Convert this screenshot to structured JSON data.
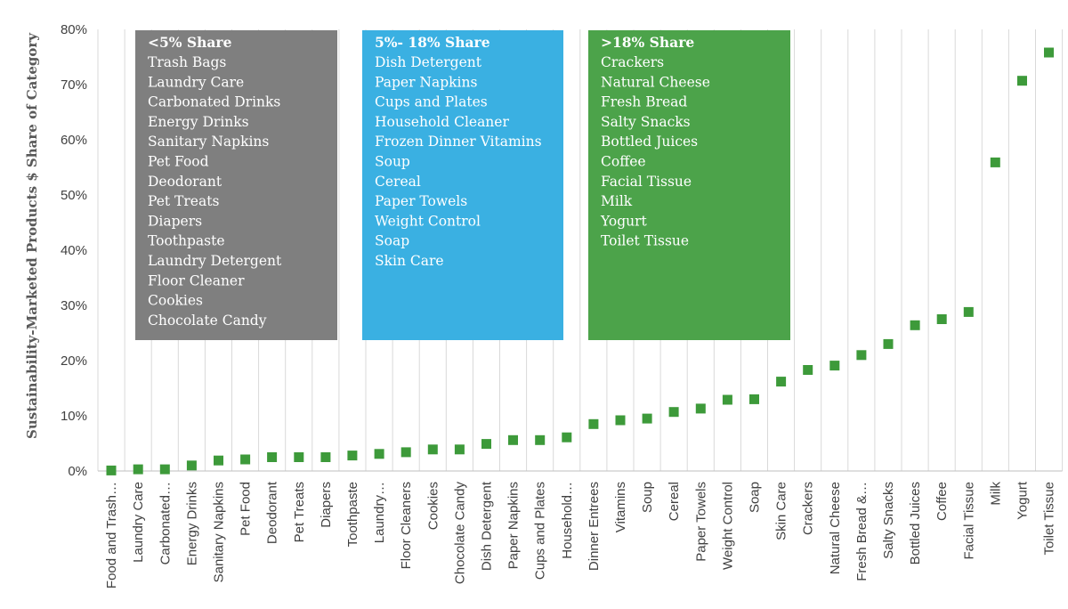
{
  "chart_data": {
    "type": "scatter",
    "ylabel": "Sustainability-Marketed  Products $ Share of Category",
    "xlabel": "",
    "ylim": [
      0,
      80
    ],
    "yticks": [
      0,
      10,
      20,
      30,
      40,
      50,
      60,
      70,
      80
    ],
    "ytick_labels": [
      "0%",
      "10%",
      "20%",
      "30%",
      "40%",
      "50%",
      "60%",
      "70%",
      "80%"
    ],
    "grid": "vertical",
    "marker_color": "#3d9a3a",
    "categories": [
      "Food and Trash…",
      "Laundry Care",
      "Carbonated…",
      "Energy Drinks",
      "Sanitary Napkins",
      "Pet Food",
      "Deodorant",
      "Pet Treats",
      "Diapers",
      "Toothpaste",
      "Laundry…",
      "Floor Cleaners",
      "Cookies",
      "Chocolate Candy",
      "Dish Detergent",
      "Paper Napkins",
      "Cups and Plates",
      "Household…",
      "Dinner Entrees",
      "Vitamins",
      "Soup",
      "Cereal",
      "Paper Towels",
      "Weight Control",
      "Soap",
      "Skin Care",
      "Crackers",
      "Natural Cheese",
      "Fresh Bread &…",
      "Salty Snacks",
      "Bottled Juices",
      "Coffee",
      "Facial Tissue",
      "Milk",
      "Yogurt",
      "Toilet Tissue"
    ],
    "values": [
      0.1,
      0.3,
      0.3,
      1.0,
      1.9,
      2.1,
      2.5,
      2.5,
      2.5,
      2.8,
      3.1,
      3.4,
      3.9,
      3.9,
      4.9,
      5.6,
      5.6,
      6.1,
      8.5,
      9.2,
      9.5,
      10.7,
      11.3,
      12.9,
      13.0,
      16.2,
      18.3,
      19.1,
      21.0,
      23.0,
      26.4,
      27.5,
      28.8,
      55.9,
      70.7,
      75.8
    ],
    "annotations": [
      {
        "heading": "<5% Share",
        "color": "#7f7f7f",
        "items": [
          "Trash Bags",
          "Laundry Care",
          "Carbonated Drinks",
          "Energy Drinks",
          "Sanitary Napkins",
          "Pet Food",
          "Deodorant",
          "Pet Treats",
          "Diapers",
          "Toothpaste",
          "Laundry Detergent",
          "Floor Cleaner",
          "Cookies",
          "Chocolate Candy"
        ]
      },
      {
        "heading": "5%- 18% Share",
        "color": "#3ab0e2",
        "items": [
          "Dish Detergent",
          "Paper Napkins",
          "Cups and Plates",
          "Household Cleaner",
          "Frozen Dinner Vitamins",
          "Soup",
          "Cereal",
          "Paper Towels",
          "Weight Control",
          "Soap",
          "Skin Care"
        ]
      },
      {
        "heading": ">18% Share",
        "color": "#4ca34a",
        "items": [
          "Crackers",
          "Natural Cheese",
          "Fresh Bread",
          "Salty Snacks",
          "Bottled  Juices",
          "Coffee",
          "Facial Tissue",
          "Milk",
          "Yogurt",
          "Toilet Tissue"
        ]
      }
    ]
  }
}
